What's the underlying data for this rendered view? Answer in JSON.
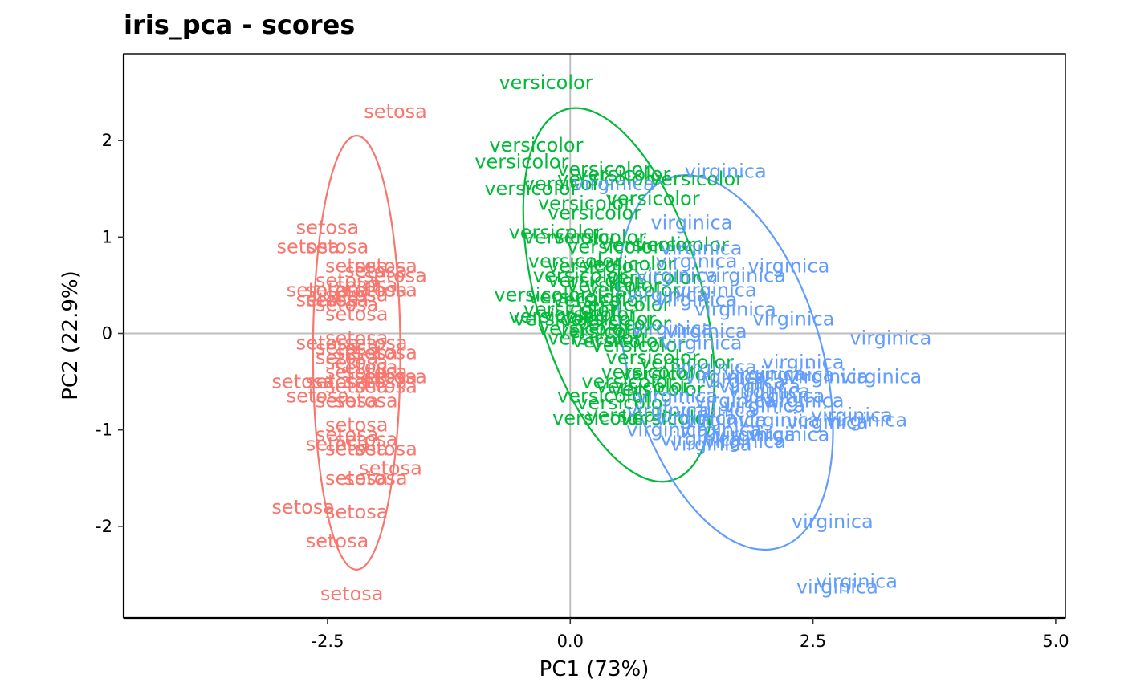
{
  "chart_data": {
    "type": "scatter",
    "title": "iris_pca - scores",
    "xlabel": "PC1 (73%)",
    "ylabel": "PC2 (22.9%)",
    "xlim": [
      -4.6,
      5.1
    ],
    "ylim": [
      -2.95,
      2.9
    ],
    "xticks": [
      -2.5,
      0.0,
      2.5,
      5.0
    ],
    "xtick_labels": [
      "-2.5",
      "0.0",
      "2.5",
      "5.0"
    ],
    "yticks": [
      -2,
      -1,
      0,
      1,
      2
    ],
    "ytick_labels": [
      "-2",
      "-1",
      "0",
      "1",
      "2"
    ],
    "reference_lines": {
      "x": 0,
      "y": 0
    },
    "grid": false,
    "legend": "none",
    "marker": "text label (species name)",
    "ellipses": true,
    "series": [
      {
        "name": "setosa",
        "color": "#F8766D",
        "ellipse": {
          "cx": -2.2,
          "cy": -0.2,
          "rx": 0.45,
          "ry": 2.25,
          "rotation_deg": 0
        },
        "points": [
          [
            -1.8,
            2.3
          ],
          [
            -2.5,
            1.1
          ],
          [
            -2.7,
            0.9
          ],
          [
            -2.4,
            0.9
          ],
          [
            -2.2,
            0.7
          ],
          [
            -2.0,
            0.65
          ],
          [
            -1.9,
            0.7
          ],
          [
            -1.8,
            0.6
          ],
          [
            -2.3,
            0.55
          ],
          [
            -2.1,
            0.5
          ],
          [
            -2.6,
            0.45
          ],
          [
            -2.4,
            0.45
          ],
          [
            -1.9,
            0.45
          ],
          [
            -2.0,
            0.45
          ],
          [
            -2.2,
            0.4
          ],
          [
            -2.5,
            0.35
          ],
          [
            -2.4,
            0.35
          ],
          [
            -2.3,
            0.3
          ],
          [
            -2.2,
            0.2
          ],
          [
            -2.2,
            -0.05
          ],
          [
            -2.5,
            -0.1
          ],
          [
            -2.3,
            -0.15
          ],
          [
            -2.0,
            -0.1
          ],
          [
            -1.9,
            -0.2
          ],
          [
            -2.1,
            -0.2
          ],
          [
            -2.3,
            -0.25
          ],
          [
            -2.2,
            -0.3
          ],
          [
            -2.1,
            -0.35
          ],
          [
            -2.2,
            -0.4
          ],
          [
            -2.0,
            -0.4
          ],
          [
            -1.9,
            -0.45
          ],
          [
            -1.8,
            -0.45
          ],
          [
            -2.75,
            -0.5
          ],
          [
            -2.4,
            -0.5
          ],
          [
            -2.2,
            -0.55
          ],
          [
            -2.0,
            -0.5
          ],
          [
            -1.9,
            -0.55
          ],
          [
            -2.6,
            -0.65
          ],
          [
            -2.3,
            -0.7
          ],
          [
            -2.1,
            -0.7
          ],
          [
            -2.2,
            -0.95
          ],
          [
            -2.3,
            -1.05
          ],
          [
            -2.1,
            -1.1
          ],
          [
            -2.4,
            -1.15
          ],
          [
            -2.2,
            -1.2
          ],
          [
            -1.9,
            -1.2
          ],
          [
            -1.85,
            -1.4
          ],
          [
            -2.2,
            -1.5
          ],
          [
            -2.0,
            -1.5
          ],
          [
            -2.75,
            -1.8
          ],
          [
            -2.2,
            -1.85
          ],
          [
            -2.4,
            -2.15
          ],
          [
            -2.25,
            -2.7
          ]
        ]
      },
      {
        "name": "versicolor",
        "color": "#00BA38",
        "ellipse": {
          "cx": 0.5,
          "cy": 0.4,
          "rx": 0.85,
          "ry": 2.0,
          "rotation_deg": 16
        },
        "points": [
          [
            -0.25,
            2.6
          ],
          [
            -0.35,
            1.95
          ],
          [
            -0.5,
            1.78
          ],
          [
            0.35,
            1.7
          ],
          [
            0.55,
            1.65
          ],
          [
            -0.4,
            1.5
          ],
          [
            0.0,
            1.55
          ],
          [
            0.35,
            1.6
          ],
          [
            1.3,
            1.6
          ],
          [
            0.85,
            1.4
          ],
          [
            0.15,
            1.35
          ],
          [
            0.25,
            1.25
          ],
          [
            -0.15,
            1.05
          ],
          [
            0.0,
            1.0
          ],
          [
            0.3,
            1.0
          ],
          [
            0.45,
            0.9
          ],
          [
            0.8,
            0.92
          ],
          [
            1.15,
            0.92
          ],
          [
            0.05,
            0.75
          ],
          [
            0.25,
            0.7
          ],
          [
            0.6,
            0.72
          ],
          [
            0.1,
            0.6
          ],
          [
            0.25,
            0.55
          ],
          [
            0.85,
            0.58
          ],
          [
            0.45,
            0.5
          ],
          [
            0.65,
            0.45
          ],
          [
            -0.3,
            0.4
          ],
          [
            0.05,
            0.38
          ],
          [
            0.3,
            0.35
          ],
          [
            0.55,
            0.3
          ],
          [
            0.0,
            0.25
          ],
          [
            0.2,
            0.2
          ],
          [
            -0.15,
            0.18
          ],
          [
            -0.1,
            0.15
          ],
          [
            0.4,
            0.15
          ],
          [
            0.55,
            0.1
          ],
          [
            0.15,
            0.05
          ],
          [
            0.35,
            0.02
          ],
          [
            0.25,
            -0.05
          ],
          [
            0.5,
            -0.08
          ],
          [
            0.7,
            -0.12
          ],
          [
            0.85,
            -0.25
          ],
          [
            1.2,
            -0.3
          ],
          [
            0.8,
            -0.4
          ],
          [
            1.0,
            -0.42
          ],
          [
            0.6,
            -0.5
          ],
          [
            0.75,
            -0.55
          ],
          [
            0.9,
            -0.58
          ],
          [
            0.35,
            -0.65
          ],
          [
            0.55,
            -0.72
          ],
          [
            0.65,
            -0.85
          ],
          [
            0.3,
            -0.88
          ],
          [
            1.0,
            -0.88
          ]
        ]
      },
      {
        "name": "virginica",
        "color": "#619CFF",
        "ellipse": {
          "cx": 1.6,
          "cy": -0.3,
          "rx": 1.0,
          "ry": 2.0,
          "rotation_deg": 16
        },
        "points": [
          [
            1.6,
            1.68
          ],
          [
            0.45,
            1.55
          ],
          [
            1.25,
            1.15
          ],
          [
            1.35,
            0.88
          ],
          [
            2.25,
            0.7
          ],
          [
            1.3,
            0.75
          ],
          [
            1.8,
            0.6
          ],
          [
            1.1,
            0.6
          ],
          [
            1.5,
            0.45
          ],
          [
            1.0,
            0.4
          ],
          [
            1.3,
            0.35
          ],
          [
            1.7,
            0.25
          ],
          [
            2.3,
            0.15
          ],
          [
            1.05,
            0.05
          ],
          [
            1.4,
            0.02
          ],
          [
            1.35,
            -0.1
          ],
          [
            3.3,
            -0.05
          ],
          [
            1.5,
            -0.35
          ],
          [
            2.4,
            -0.3
          ],
          [
            1.6,
            -0.45
          ],
          [
            2.0,
            -0.42
          ],
          [
            2.3,
            -0.43
          ],
          [
            2.65,
            -0.45
          ],
          [
            3.2,
            -0.45
          ],
          [
            1.8,
            -0.5
          ],
          [
            1.95,
            -0.55
          ],
          [
            2.05,
            -0.6
          ],
          [
            2.2,
            -0.65
          ],
          [
            1.1,
            -0.65
          ],
          [
            1.7,
            -0.7
          ],
          [
            2.4,
            -0.7
          ],
          [
            2.0,
            -0.75
          ],
          [
            1.0,
            -0.8
          ],
          [
            1.5,
            -0.8
          ],
          [
            2.9,
            -0.85
          ],
          [
            1.3,
            -0.88
          ],
          [
            1.6,
            -0.9
          ],
          [
            2.15,
            -0.9
          ],
          [
            2.65,
            -0.92
          ],
          [
            3.05,
            -0.9
          ],
          [
            1.55,
            -1.0
          ],
          [
            1.0,
            -1.0
          ],
          [
            1.9,
            -1.05
          ],
          [
            1.35,
            -1.1
          ],
          [
            1.8,
            -1.12
          ],
          [
            1.45,
            -1.15
          ],
          [
            2.25,
            -1.05
          ],
          [
            2.7,
            -1.95
          ],
          [
            2.95,
            -2.57
          ],
          [
            2.75,
            -2.63
          ]
        ]
      }
    ]
  }
}
